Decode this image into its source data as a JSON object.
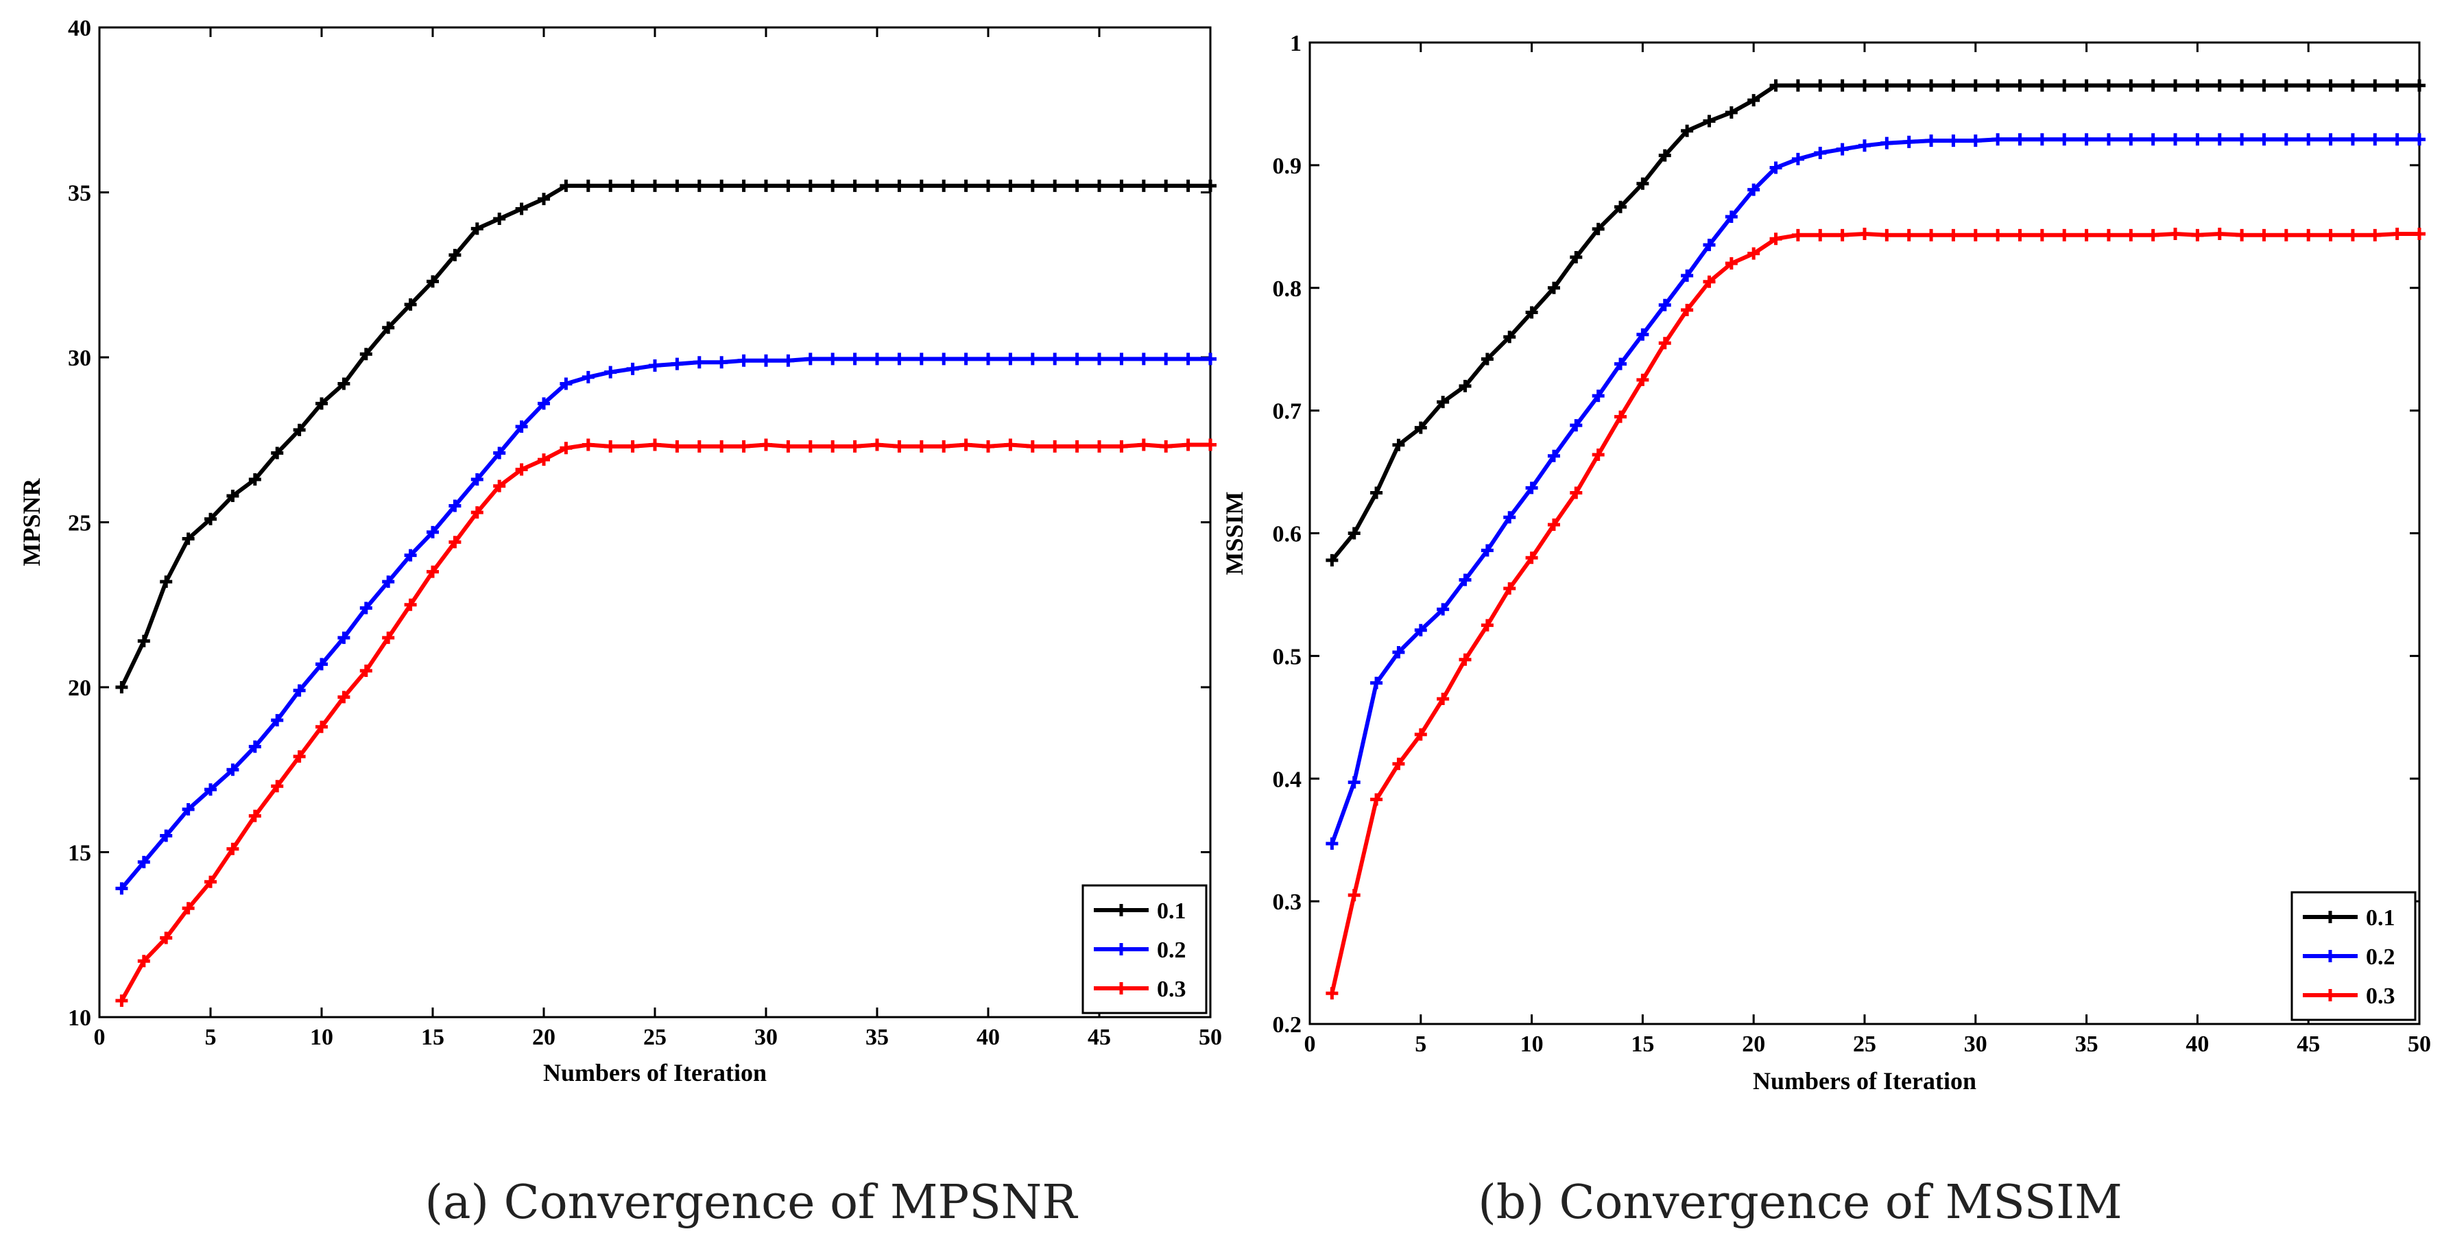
{
  "figure": {
    "captions": [
      "(a) Convergence of MPSNR",
      "(b) Convergence of MSSIM"
    ]
  },
  "chart_data": [
    {
      "type": "line",
      "title": "",
      "xlabel": "Numbers of Iteration",
      "ylabel": "MPSNR",
      "xlim": [
        0,
        50
      ],
      "ylim": [
        10,
        40
      ],
      "xticks": [
        0,
        5,
        10,
        15,
        20,
        25,
        30,
        35,
        40,
        45,
        50
      ],
      "yticks": [
        10,
        15,
        20,
        25,
        30,
        35,
        40
      ],
      "legend_position": "bottom-right",
      "x": [
        1,
        2,
        3,
        4,
        5,
        6,
        7,
        8,
        9,
        10,
        11,
        12,
        13,
        14,
        15,
        16,
        17,
        18,
        19,
        20,
        21,
        22,
        23,
        24,
        25,
        26,
        27,
        28,
        29,
        30,
        31,
        32,
        33,
        34,
        35,
        36,
        37,
        38,
        39,
        40,
        41,
        42,
        43,
        44,
        45,
        46,
        47,
        48,
        49,
        50
      ],
      "series": [
        {
          "name": "0.1",
          "color": "#000000",
          "values": [
            20.0,
            21.4,
            23.2,
            24.5,
            25.1,
            25.8,
            26.3,
            27.1,
            27.8,
            28.6,
            29.2,
            30.1,
            30.9,
            31.6,
            32.3,
            33.1,
            33.9,
            34.2,
            34.5,
            34.8,
            35.2,
            35.2,
            35.2,
            35.2,
            35.2,
            35.2,
            35.2,
            35.2,
            35.2,
            35.2,
            35.2,
            35.2,
            35.2,
            35.2,
            35.2,
            35.2,
            35.2,
            35.2,
            35.2,
            35.2,
            35.2,
            35.2,
            35.2,
            35.2,
            35.2,
            35.2,
            35.2,
            35.2,
            35.2,
            35.2
          ]
        },
        {
          "name": "0.2",
          "color": "#0000ff",
          "values": [
            13.9,
            14.7,
            15.5,
            16.3,
            16.9,
            17.5,
            18.2,
            19.0,
            19.9,
            20.7,
            21.5,
            22.4,
            23.2,
            24.0,
            24.7,
            25.5,
            26.3,
            27.1,
            27.9,
            28.6,
            29.2,
            29.4,
            29.55,
            29.65,
            29.75,
            29.8,
            29.85,
            29.85,
            29.9,
            29.9,
            29.9,
            29.95,
            29.95,
            29.95,
            29.95,
            29.95,
            29.95,
            29.95,
            29.95,
            29.95,
            29.95,
            29.95,
            29.95,
            29.95,
            29.95,
            29.95,
            29.95,
            29.95,
            29.95,
            29.95
          ]
        },
        {
          "name": "0.3",
          "color": "#ff0000",
          "values": [
            10.5,
            11.7,
            12.4,
            13.3,
            14.1,
            15.1,
            16.1,
            17.0,
            17.9,
            18.8,
            19.7,
            20.5,
            21.5,
            22.5,
            23.5,
            24.4,
            25.3,
            26.1,
            26.6,
            26.9,
            27.25,
            27.35,
            27.3,
            27.3,
            27.35,
            27.3,
            27.3,
            27.3,
            27.3,
            27.35,
            27.3,
            27.3,
            27.3,
            27.3,
            27.35,
            27.3,
            27.3,
            27.3,
            27.35,
            27.3,
            27.35,
            27.3,
            27.3,
            27.3,
            27.3,
            27.3,
            27.35,
            27.3,
            27.35,
            27.35
          ]
        }
      ]
    },
    {
      "type": "line",
      "title": "",
      "xlabel": "Numbers of Iteration",
      "ylabel": "MSSIM",
      "xlim": [
        0,
        50
      ],
      "ylim": [
        0.2,
        1
      ],
      "xticks": [
        0,
        5,
        10,
        15,
        20,
        25,
        30,
        35,
        40,
        45,
        50
      ],
      "yticks": [
        0.2,
        0.3,
        0.4,
        0.5,
        0.6,
        0.7,
        0.8,
        0.9,
        1
      ],
      "legend_position": "bottom-right",
      "x": [
        1,
        2,
        3,
        4,
        5,
        6,
        7,
        8,
        9,
        10,
        11,
        12,
        13,
        14,
        15,
        16,
        17,
        18,
        19,
        20,
        21,
        22,
        23,
        24,
        25,
        26,
        27,
        28,
        29,
        30,
        31,
        32,
        33,
        34,
        35,
        36,
        37,
        38,
        39,
        40,
        41,
        42,
        43,
        44,
        45,
        46,
        47,
        48,
        49,
        50
      ],
      "series": [
        {
          "name": "0.1",
          "color": "#000000",
          "values": [
            0.578,
            0.6,
            0.633,
            0.672,
            0.686,
            0.707,
            0.72,
            0.742,
            0.76,
            0.78,
            0.8,
            0.825,
            0.848,
            0.866,
            0.885,
            0.908,
            0.928,
            0.936,
            0.943,
            0.953,
            0.965,
            0.965,
            0.965,
            0.965,
            0.965,
            0.965,
            0.965,
            0.965,
            0.965,
            0.965,
            0.965,
            0.965,
            0.965,
            0.965,
            0.965,
            0.965,
            0.965,
            0.965,
            0.965,
            0.965,
            0.965,
            0.965,
            0.965,
            0.965,
            0.965,
            0.965,
            0.965,
            0.965,
            0.965,
            0.965
          ]
        },
        {
          "name": "0.2",
          "color": "#0000ff",
          "values": [
            0.347,
            0.397,
            0.478,
            0.503,
            0.521,
            0.538,
            0.562,
            0.586,
            0.613,
            0.637,
            0.663,
            0.688,
            0.712,
            0.738,
            0.762,
            0.786,
            0.81,
            0.835,
            0.858,
            0.88,
            0.898,
            0.905,
            0.91,
            0.913,
            0.916,
            0.918,
            0.919,
            0.92,
            0.92,
            0.92,
            0.921,
            0.921,
            0.921,
            0.921,
            0.921,
            0.921,
            0.921,
            0.921,
            0.921,
            0.921,
            0.921,
            0.921,
            0.921,
            0.921,
            0.921,
            0.921,
            0.921,
            0.921,
            0.921,
            0.921
          ]
        },
        {
          "name": "0.3",
          "color": "#ff0000",
          "values": [
            0.225,
            0.305,
            0.383,
            0.412,
            0.436,
            0.465,
            0.497,
            0.525,
            0.555,
            0.58,
            0.607,
            0.633,
            0.664,
            0.695,
            0.725,
            0.755,
            0.782,
            0.805,
            0.82,
            0.828,
            0.84,
            0.843,
            0.843,
            0.843,
            0.844,
            0.843,
            0.843,
            0.843,
            0.843,
            0.843,
            0.843,
            0.843,
            0.843,
            0.843,
            0.843,
            0.843,
            0.843,
            0.843,
            0.844,
            0.843,
            0.844,
            0.843,
            0.843,
            0.843,
            0.843,
            0.843,
            0.843,
            0.843,
            0.844,
            0.844
          ]
        }
      ]
    }
  ]
}
